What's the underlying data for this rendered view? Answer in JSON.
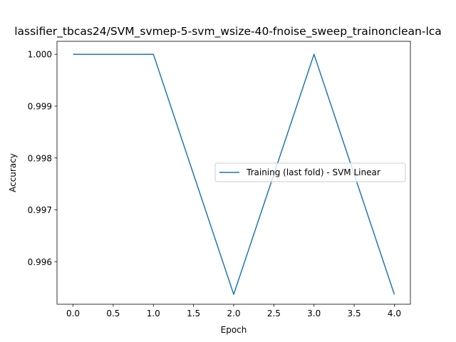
{
  "chart_data": {
    "type": "line",
    "title": "lassifier_tbcas24/SVM_svmep-5-svm_wsize-40-fnoise_sweep_trainonclean-lca",
    "xlabel": "Epoch",
    "ylabel": "Accuracy",
    "xlim": [
      -0.2,
      4.2
    ],
    "ylim": [
      0.99518,
      1.00025
    ],
    "x_ticks": [
      0.0,
      0.5,
      1.0,
      1.5,
      2.0,
      2.5,
      3.0,
      3.5,
      4.0
    ],
    "x_tick_labels": [
      "0.0",
      "0.5",
      "1.0",
      "1.5",
      "2.0",
      "2.5",
      "3.0",
      "3.5",
      "4.0"
    ],
    "y_ticks": [
      0.996,
      0.997,
      0.998,
      0.999,
      1.0
    ],
    "y_tick_labels": [
      "0.996",
      "0.997",
      "0.998",
      "0.999",
      "1.000"
    ],
    "grid": false,
    "legend_position": "center-right",
    "series": [
      {
        "name": "Training (last fold) - SVM Linear",
        "color": "#1f77b4",
        "x": [
          0,
          1,
          2,
          3,
          4
        ],
        "y": [
          1.0,
          1.0,
          0.99537,
          1.0,
          0.99537
        ]
      }
    ]
  }
}
